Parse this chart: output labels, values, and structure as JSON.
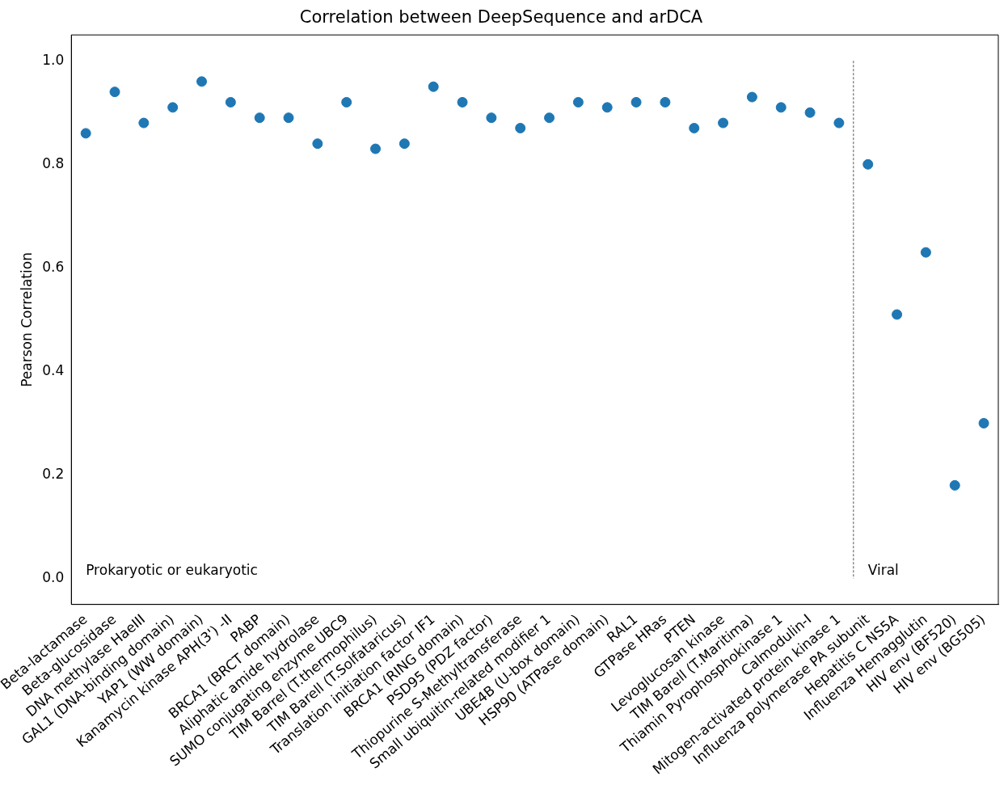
{
  "chart_data": {
    "type": "scatter",
    "title": "Correlation between DeepSequence and arDCA",
    "ylabel": "Pearson Correlation",
    "categories": [
      "Beta-lactamase",
      "Beta-glucosidase",
      "DNA methylase HaeIII",
      "GAL1 (DNA-binding domain)",
      "YAP1 (WW domain)",
      "Kanamycin kinase APH(3') -II",
      "PABP",
      "BRCA1 (BRCT domain)",
      "Aliphatic amide hydrolase",
      "SUMO conjugating enzyme UBC9",
      "TIM Barrel (T.thermophilus)",
      "TIM Barell (T.Solfataricus)",
      "Translation initiation factor IF1",
      "BRCA1 (RING domain)",
      "PSD95 (PDZ factor)",
      "Thiopurine S-Methyltransferase",
      "Small ubiquitin-related modifier 1",
      "UBE4B (U-box domain)",
      "HSP90 (ATPase domain)",
      "RAL1",
      "GTPase HRas",
      "PTEN",
      "Levoglucosan kinase",
      "TIM Barell (T.Maritima)",
      "Thiamin Pyrophosphokinase 1",
      "Calmodulin-I",
      "Mitogen-activated protein kinase 1",
      "Influenza polymerase PA subunit",
      "Hepatitis C NS5A",
      "Influenza Hemagglutin",
      "HIV env (BF520)",
      "HIV env (BG505)"
    ],
    "series": [
      {
        "color": "#1f77b4",
        "values": [
          0.86,
          0.94,
          0.88,
          0.91,
          0.96,
          0.92,
          0.89,
          0.89,
          0.84,
          0.92,
          0.83,
          0.84,
          0.95,
          0.92,
          0.89,
          0.87,
          0.89,
          0.92,
          0.91,
          0.92,
          0.92,
          0.87,
          0.88,
          0.93,
          0.91,
          0.9,
          0.88,
          0.8,
          0.51,
          0.63,
          0.18,
          0.3
        ]
      }
    ],
    "ylim": [
      -0.05,
      1.05
    ],
    "yticks": [
      {
        "value": 0,
        "label": "0.0"
      },
      {
        "value": 0.2,
        "label": "0.2"
      },
      {
        "value": 0.4,
        "label": "0.4"
      },
      {
        "value": 0.6,
        "label": "0.6"
      },
      {
        "value": 0.8,
        "label": "0.8"
      },
      {
        "value": 1,
        "label": "1.0"
      }
    ],
    "annotations": [
      "Prokaryotic or eukaryotic",
      "Viral"
    ],
    "marker": "circle",
    "grid": false,
    "legend": false
  }
}
